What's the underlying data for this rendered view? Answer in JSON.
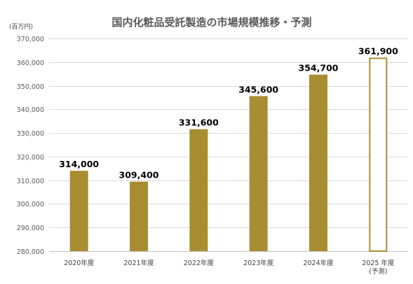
{
  "chart_data": {
    "type": "bar",
    "title": "国内化粧品受託製造の市場規模推移・予測",
    "unit_label": "(百万円)",
    "categories": [
      "2020年度",
      "2021年度",
      "2022年度",
      "2023年度",
      "2024年度",
      "2025 年度"
    ],
    "category_notes": [
      "",
      "",
      "",
      "",
      "",
      "(予測)"
    ],
    "values": [
      314000,
      309400,
      331600,
      345600,
      354700,
      361900
    ],
    "value_labels": [
      "314,000",
      "309,400",
      "331,600",
      "345,600",
      "354,700",
      "361,900"
    ],
    "forecast": [
      false,
      false,
      false,
      false,
      false,
      true
    ],
    "ylim": [
      280000,
      370000
    ],
    "yticks": [
      280000,
      290000,
      300000,
      310000,
      320000,
      330000,
      340000,
      350000,
      360000,
      370000
    ],
    "ytick_labels": [
      "280,000",
      "290,000",
      "300,000",
      "310,000",
      "320,000",
      "330,000",
      "340,000",
      "350,000",
      "360,000",
      "370,000"
    ],
    "grid": true,
    "xlabel": "",
    "ylabel": "",
    "bar_color": "#a88d31",
    "forecast_fill": "#ffffff"
  }
}
